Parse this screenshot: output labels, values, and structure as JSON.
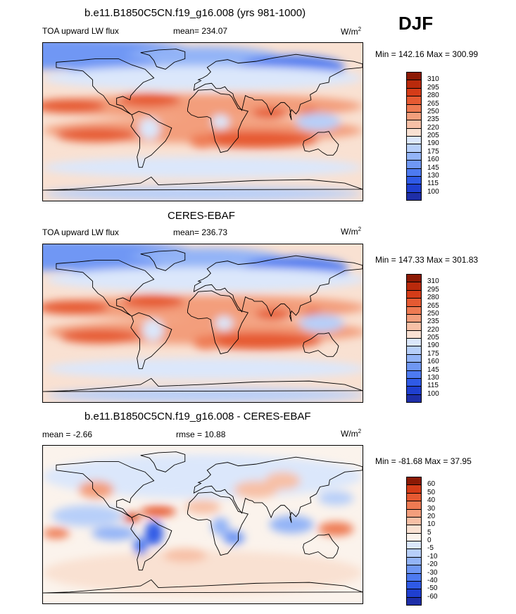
{
  "season": "DJF",
  "colors": {
    "temp": [
      "#1e2ea8",
      "#1f3fd0",
      "#2f5ae6",
      "#4d7af0",
      "#6f97f4",
      "#93b4f7",
      "#b7cff9",
      "#dbe7fb",
      "#f9e1d2",
      "#f7c0a6",
      "#f39e7c",
      "#ee7a52",
      "#e65a32",
      "#d53c18",
      "#b92a0c",
      "#8c1a05"
    ],
    "diff": [
      "#1e2ea8",
      "#1f3fd0",
      "#2f5ae6",
      "#4d7af0",
      "#6f97f4",
      "#93b4f7",
      "#b7cff9",
      "#dbe7fb",
      "#fbf3ec",
      "#f9e1d2",
      "#f7c0a6",
      "#f39e7c",
      "#ee7a52",
      "#e65a32",
      "#d53c18",
      "#8c1a05"
    ]
  },
  "chart_data": [
    {
      "type": "heatmap",
      "title": "b.e11.B1850C5CN.f19_g16.008 (yrs 981-1000)",
      "variable": "TOA upward LW flux",
      "mean_label": "mean= 234.07",
      "units": "W/m",
      "units_exp": "2",
      "minmax": "Min = 142.16 Max = 300.99",
      "colorbar_levels": [
        "310",
        "295",
        "280",
        "265",
        "250",
        "235",
        "220",
        "205",
        "190",
        "175",
        "160",
        "145",
        "130",
        "115",
        "100"
      ]
    },
    {
      "type": "heatmap",
      "title": "CERES-EBAF",
      "variable": "TOA upward LW flux",
      "mean_label": "mean= 236.73",
      "units": "W/m",
      "units_exp": "2",
      "minmax": "Min = 147.33 Max = 301.83",
      "colorbar_levels": [
        "310",
        "295",
        "280",
        "265",
        "250",
        "235",
        "220",
        "205",
        "190",
        "175",
        "160",
        "145",
        "130",
        "115",
        "100"
      ]
    },
    {
      "type": "heatmap",
      "title": "b.e11.B1850C5CN.f19_g16.008 - CERES-EBAF",
      "mean_label": "mean =  -2.66",
      "rmse_label": "rmse =  10.88",
      "units": "W/m",
      "units_exp": "2",
      "minmax": "Min = -81.68 Max =  37.95",
      "colorbar_levels": [
        "60",
        "50",
        "40",
        "30",
        "20",
        "10",
        "5",
        "0",
        "-5",
        "-10",
        "-20",
        "-30",
        "-40",
        "-50",
        "-60"
      ]
    }
  ]
}
